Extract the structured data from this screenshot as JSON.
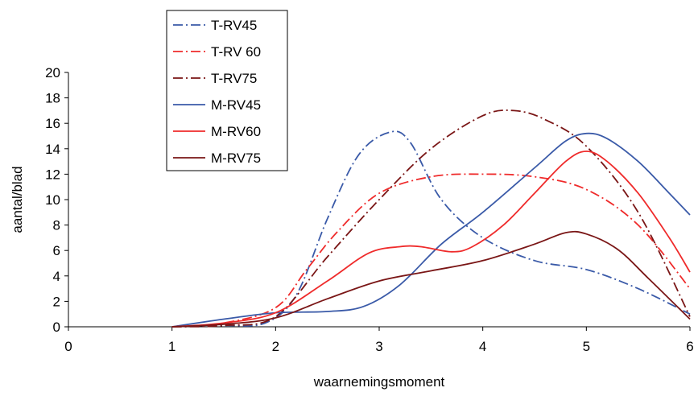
{
  "chart_data": {
    "type": "line",
    "title": "",
    "xlabel": "waarnemingsmoment",
    "ylabel": "aantal/blad",
    "xlim": [
      0,
      6
    ],
    "ylim": [
      0,
      20
    ],
    "xticks": [
      0,
      1,
      2,
      3,
      4,
      5,
      6
    ],
    "yticks": [
      0,
      2,
      4,
      6,
      8,
      10,
      12,
      14,
      16,
      18,
      20
    ],
    "grid": false,
    "legend_position": "top-left",
    "series": [
      {
        "name": "T-RV45",
        "color": "#3a5aa8",
        "dash": "dash-dot",
        "points": [
          [
            1,
            0
          ],
          [
            1.5,
            0.1
          ],
          [
            1.9,
            0.3
          ],
          [
            2.2,
            2.5
          ],
          [
            2.5,
            8.5
          ],
          [
            2.8,
            13.5
          ],
          [
            3.1,
            15.3
          ],
          [
            3.3,
            14.5
          ],
          [
            3.6,
            10
          ],
          [
            4,
            7
          ],
          [
            4.5,
            5.2
          ],
          [
            5,
            4.5
          ],
          [
            5.5,
            3
          ],
          [
            6,
            1
          ]
        ]
      },
      {
        "name": "T-RV 60",
        "color": "#ef2b2b",
        "dash": "dash-dot",
        "points": [
          [
            1,
            0
          ],
          [
            1.5,
            0.3
          ],
          [
            2,
            1.5
          ],
          [
            2.3,
            4.5
          ],
          [
            2.6,
            7.5
          ],
          [
            3,
            10.5
          ],
          [
            3.5,
            11.8
          ],
          [
            4,
            12
          ],
          [
            4.5,
            11.8
          ],
          [
            5,
            10.8
          ],
          [
            5.5,
            8
          ],
          [
            6,
            3
          ]
        ]
      },
      {
        "name": "T-RV75",
        "color": "#7a1616",
        "dash": "dash-dot",
        "points": [
          [
            1,
            0
          ],
          [
            1.5,
            0.1
          ],
          [
            2,
            0.8
          ],
          [
            2.5,
            5.5
          ],
          [
            3,
            10
          ],
          [
            3.5,
            14
          ],
          [
            4,
            16.6
          ],
          [
            4.3,
            17
          ],
          [
            4.6,
            16.3
          ],
          [
            5,
            14.2
          ],
          [
            5.5,
            9
          ],
          [
            6,
            0.8
          ]
        ]
      },
      {
        "name": "M-RV45",
        "color": "#3a5aa8",
        "dash": "solid",
        "points": [
          [
            1,
            0
          ],
          [
            1.5,
            0.6
          ],
          [
            2,
            1.1
          ],
          [
            2.5,
            1.2
          ],
          [
            2.85,
            1.6
          ],
          [
            3.2,
            3.3
          ],
          [
            3.6,
            6.5
          ],
          [
            4,
            9
          ],
          [
            4.5,
            12.5
          ],
          [
            4.8,
            14.6
          ],
          [
            5,
            15.2
          ],
          [
            5.2,
            14.8
          ],
          [
            5.5,
            13
          ],
          [
            5.8,
            10.5
          ],
          [
            6,
            8.8
          ]
        ]
      },
      {
        "name": "M-RV60",
        "color": "#ef2b2b",
        "dash": "solid",
        "points": [
          [
            1,
            0
          ],
          [
            1.5,
            0.3
          ],
          [
            2,
            1.1
          ],
          [
            2.5,
            3.6
          ],
          [
            2.9,
            5.8
          ],
          [
            3.2,
            6.3
          ],
          [
            3.4,
            6.3
          ],
          [
            3.7,
            5.9
          ],
          [
            3.9,
            6.3
          ],
          [
            4.2,
            8
          ],
          [
            4.5,
            10.5
          ],
          [
            4.8,
            13
          ],
          [
            5,
            13.8
          ],
          [
            5.2,
            13
          ],
          [
            5.5,
            10.5
          ],
          [
            5.8,
            7
          ],
          [
            6,
            4.3
          ]
        ]
      },
      {
        "name": "M-RV75",
        "color": "#7a1616",
        "dash": "solid",
        "points": [
          [
            1,
            0
          ],
          [
            1.5,
            0.2
          ],
          [
            2,
            0.7
          ],
          [
            2.5,
            2.2
          ],
          [
            3,
            3.6
          ],
          [
            3.5,
            4.4
          ],
          [
            4,
            5.2
          ],
          [
            4.5,
            6.5
          ],
          [
            4.8,
            7.4
          ],
          [
            5,
            7.3
          ],
          [
            5.3,
            6.1
          ],
          [
            5.6,
            3.8
          ],
          [
            6,
            0.6
          ]
        ]
      }
    ]
  }
}
